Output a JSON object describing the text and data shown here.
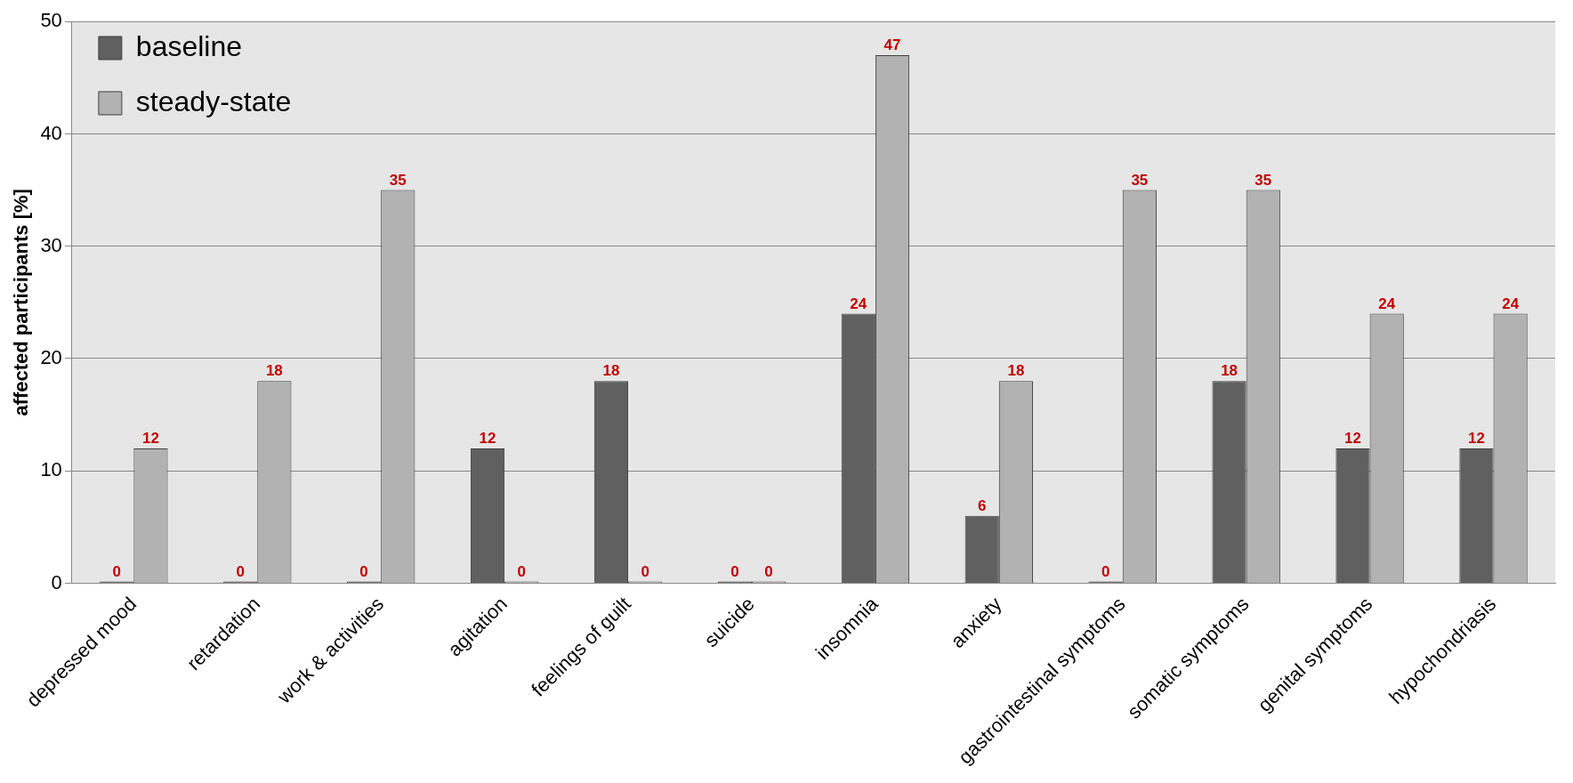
{
  "chart_data": {
    "type": "bar",
    "ylabel": "affected participants [%]",
    "categories": [
      "depressed mood",
      "retardation",
      "work & activities",
      "agitation",
      "feelings of guilt",
      "suicide",
      "insomnia",
      "anxiety",
      "gastrointestinal symptoms",
      "somatic symptoms",
      "genital symptoms",
      "hypochondriasis"
    ],
    "series": [
      {
        "name": "baseline",
        "color": "#606060",
        "values": [
          0,
          0,
          0,
          12,
          18,
          0,
          24,
          6,
          0,
          18,
          12,
          12
        ]
      },
      {
        "name": "steady-state",
        "color": "#b2b2b2",
        "values": [
          12,
          18,
          35,
          0,
          0,
          0,
          47,
          18,
          35,
          35,
          24,
          24
        ]
      }
    ],
    "ylim": [
      0,
      50
    ],
    "yticks": [
      0,
      10,
      20,
      30,
      40,
      50
    ],
    "grid": "y",
    "legend": "top left",
    "data_labels": true
  }
}
